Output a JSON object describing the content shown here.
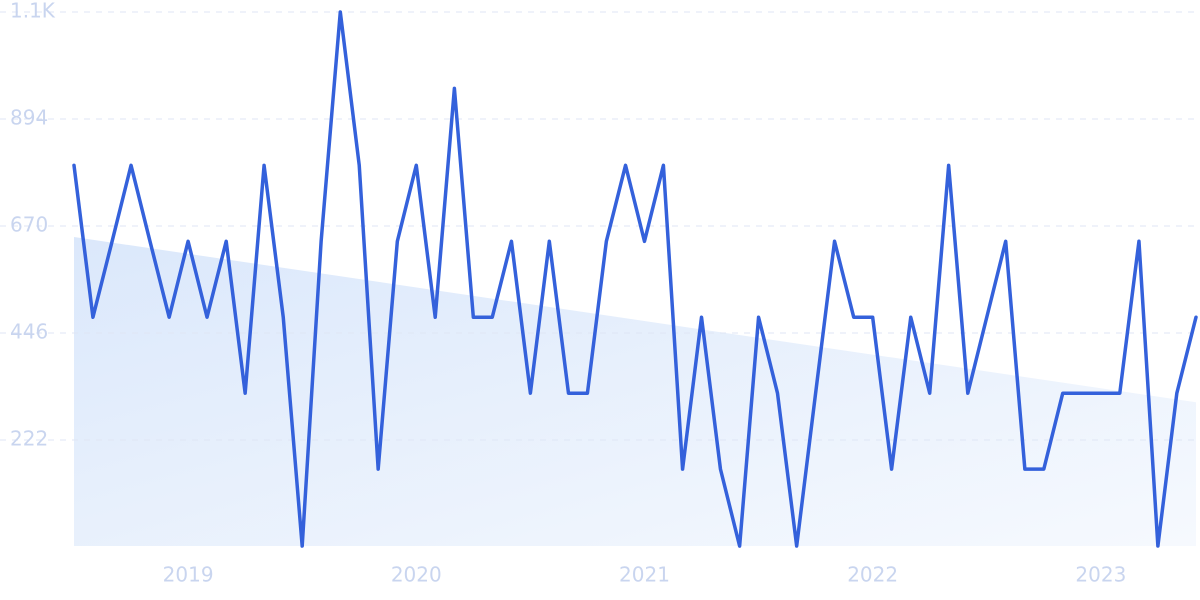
{
  "chart_data": {
    "type": "line",
    "x": [
      2018.5,
      2018.583,
      2018.667,
      2018.75,
      2018.833,
      2018.917,
      2019,
      2019.083,
      2019.167,
      2019.25,
      2019.333,
      2019.417,
      2019.5,
      2019.583,
      2019.667,
      2019.75,
      2019.833,
      2019.917,
      2020,
      2020.083,
      2020.167,
      2020.25,
      2020.333,
      2020.417,
      2020.5,
      2020.583,
      2020.667,
      2020.75,
      2020.833,
      2020.917,
      2021,
      2021.083,
      2021.167,
      2021.25,
      2021.333,
      2021.417,
      2021.5,
      2021.583,
      2021.667,
      2021.75,
      2021.833,
      2021.917,
      2022,
      2022.083,
      2022.167,
      2022.25,
      2022.333,
      2022.417,
      2022.5,
      2022.583,
      2022.667,
      2022.75,
      2022.833,
      2022.917,
      2023,
      2023.083,
      2023.167,
      2023.25,
      2023.333,
      2023.417
    ],
    "series": [
      {
        "color": "#3461db",
        "values": [
          797,
          479,
          638,
          797,
          638,
          479,
          638,
          479,
          638,
          320,
          797,
          479,
          0,
          638,
          1118,
          797,
          161,
          638,
          797,
          479,
          958,
          479,
          479,
          638,
          320,
          638,
          320,
          320,
          638,
          797,
          638,
          797,
          161,
          479,
          161,
          0,
          479,
          320,
          0,
          320,
          638,
          479,
          479,
          161,
          479,
          320,
          797,
          320,
          479,
          638,
          161,
          161,
          320,
          320,
          320,
          320,
          638,
          0,
          320,
          479
        ]
      }
    ],
    "trend_values": [
      647,
      301
    ],
    "trend_color": "#dbe8fb",
    "xlim": [
      2018.5,
      2023.417
    ],
    "xticks": [
      2019,
      2020,
      2021,
      2022,
      2023
    ],
    "ylim": [
      -2,
      1118
    ],
    "yticks": [
      {
        "value": 1118,
        "label": "1.1K"
      },
      894,
      670,
      446,
      222
    ],
    "grid": true
  }
}
